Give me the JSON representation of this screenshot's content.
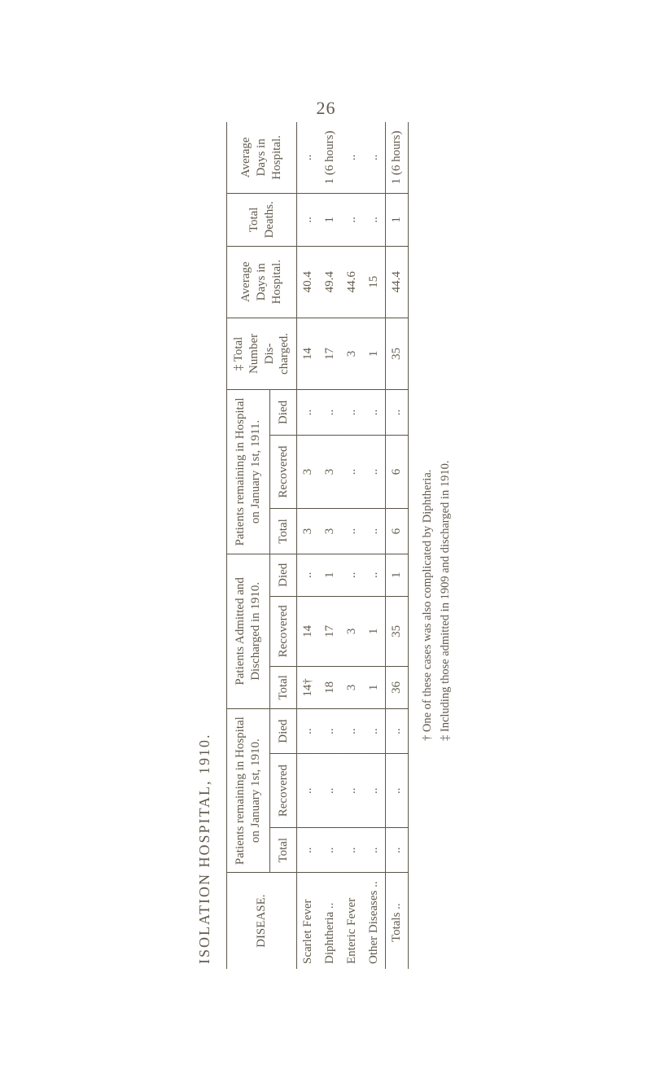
{
  "page_number": "26",
  "title": "ISOLATION HOSPITAL, 1910.",
  "columns": {
    "disease": "DISEASE.",
    "remaining_1910": "Patients remaining in Hospital on January 1st, 1910.",
    "admitted": "Patients Admitted and Discharged in 1910.",
    "remaining_1911": "Patients remaining in Hospital on January 1st, 1911.",
    "number_discharged": "‡ Total Number Dis- charged.",
    "avg_days": "Average Days in Hospital.",
    "total_deaths": "Total Deaths.",
    "avg_days_h": "Average Days in Hospital.",
    "sub_total": "Total",
    "sub_recovered": "Recovered",
    "sub_died": "Died"
  },
  "rows": [
    {
      "disease": "Scarlet Fever",
      "r10_total": "..",
      "r10_rec": "..",
      "r10_died": "..",
      "adm_total": "14†",
      "adm_rec": "14",
      "adm_died": "..",
      "r11_total": "3",
      "r11_rec": "3",
      "r11_died": "..",
      "ndis": "14",
      "avgd": "40.4",
      "tdeaths": "..",
      "avgdh": ".."
    },
    {
      "disease": "Diphtheria ..",
      "r10_total": "..",
      "r10_rec": "..",
      "r10_died": "..",
      "adm_total": "18",
      "adm_rec": "17",
      "adm_died": "1",
      "r11_total": "3",
      "r11_rec": "3",
      "r11_died": "..",
      "ndis": "17",
      "avgd": "49.4",
      "tdeaths": "1",
      "avgdh": "1 (6 hours)"
    },
    {
      "disease": "Enteric Fever",
      "r10_total": "..",
      "r10_rec": "..",
      "r10_died": "..",
      "adm_total": "3",
      "adm_rec": "3",
      "adm_died": "..",
      "r11_total": "..",
      "r11_rec": "..",
      "r11_died": "..",
      "ndis": "3",
      "avgd": "44.6",
      "tdeaths": "..",
      "avgdh": ".."
    },
    {
      "disease": "Other Diseases ..",
      "r10_total": "..",
      "r10_rec": "..",
      "r10_died": "..",
      "adm_total": "1",
      "adm_rec": "1",
      "adm_died": "..",
      "r11_total": "..",
      "r11_rec": "..",
      "r11_died": "..",
      "ndis": "1",
      "avgd": "15",
      "tdeaths": "..",
      "avgdh": ".."
    }
  ],
  "totals": {
    "disease": "Totals ..",
    "r10_total": "..",
    "r10_rec": "..",
    "r10_died": "..",
    "adm_total": "36",
    "adm_rec": "35",
    "adm_died": "1",
    "r11_total": "6",
    "r11_rec": "6",
    "r11_died": "..",
    "ndis": "35",
    "avgd": "44.4",
    "tdeaths": "1",
    "avgdh": "1 (6 hours)"
  },
  "footnotes": {
    "dagger": "† One of these cases was also complicated by Diphtheria.",
    "ddagger": "‡ Including those admitted in 1909 and discharged in 1910."
  },
  "style": {
    "text_color": "#615a4d",
    "rule_color": "#5a5446",
    "background": "#ffffff"
  }
}
